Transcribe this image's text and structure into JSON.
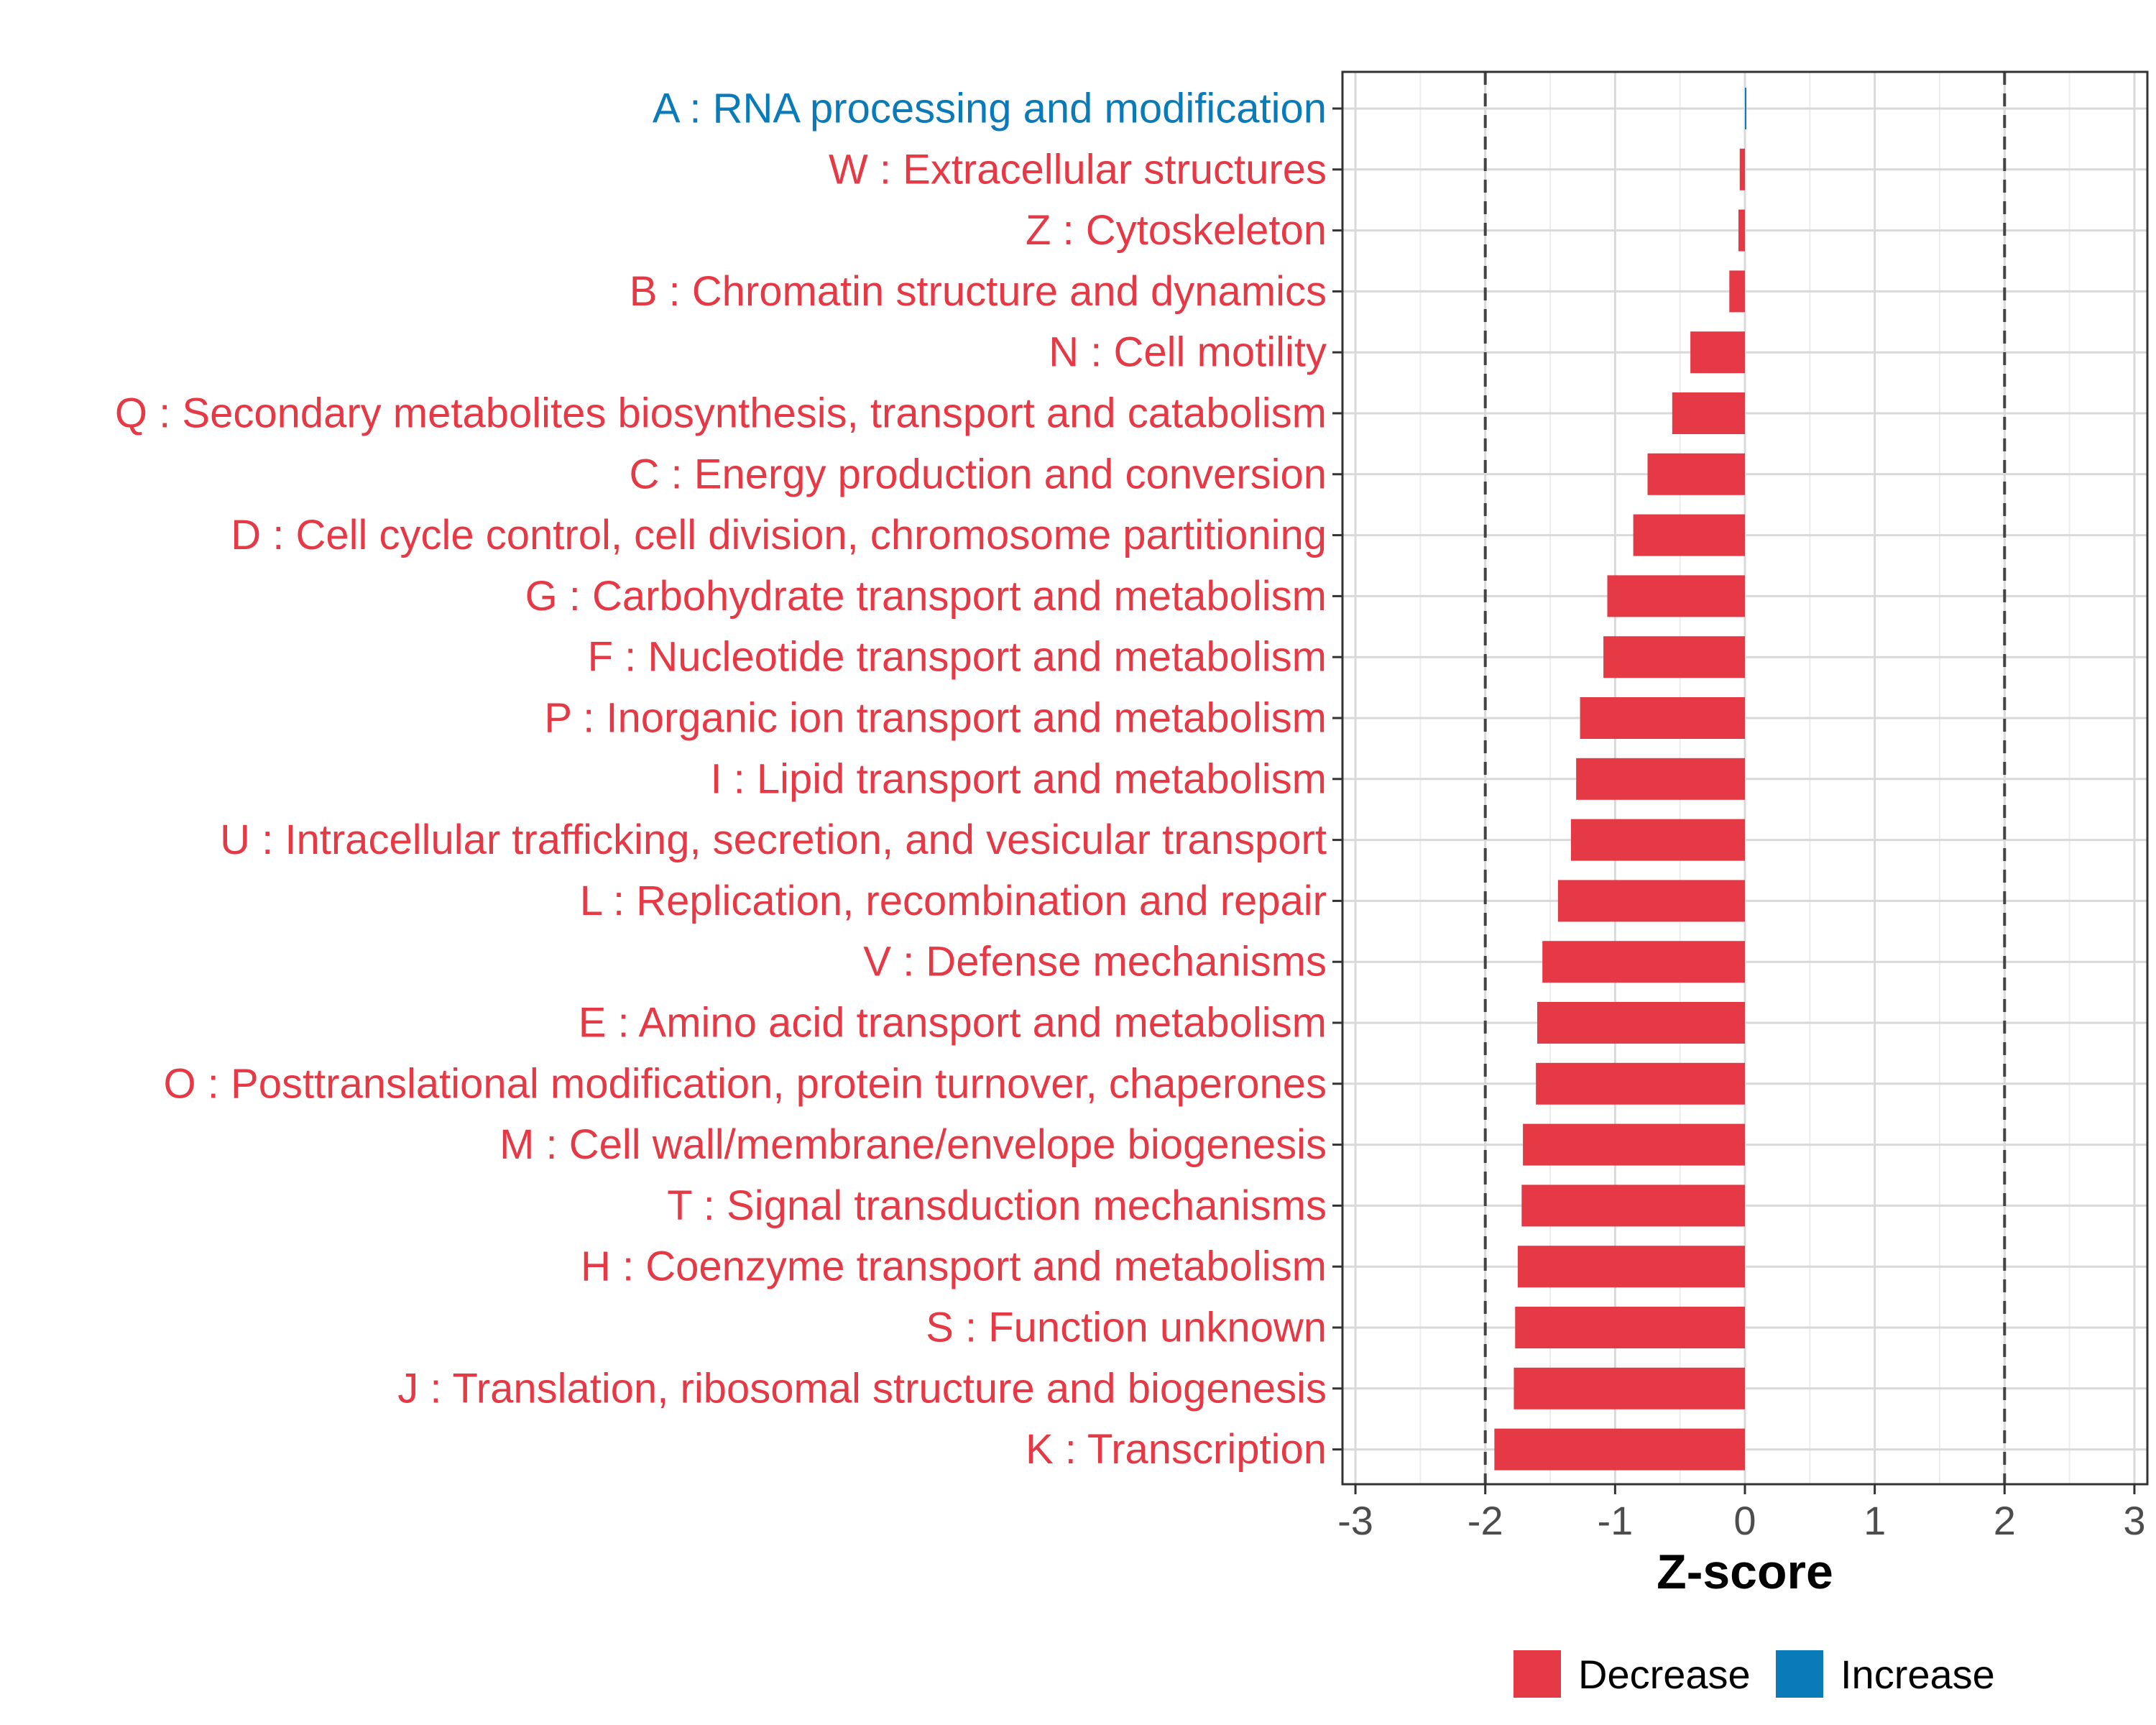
{
  "chart_data": {
    "type": "bar",
    "orientation": "horizontal",
    "xlabel": "Z-score",
    "ylabel": "",
    "xlim": [
      -3.1,
      3.1
    ],
    "xticks": [
      -3,
      -2,
      -1,
      0,
      1,
      2,
      3
    ],
    "threshold_lines": [
      -2,
      2
    ],
    "grid": true,
    "legend_position": "bottom",
    "colors": {
      "Decrease": "#e63946",
      "Increase": "#0a7bb8"
    },
    "legend": [
      "Decrease",
      "Increase"
    ],
    "categories": [
      "A : RNA processing and modification",
      "W : Extracellular structures",
      "Z : Cytoskeleton",
      "B : Chromatin structure and dynamics",
      "N : Cell motility",
      "Q : Secondary metabolites biosynthesis, transport and catabolism",
      "C : Energy production and conversion",
      "D : Cell cycle control, cell division, chromosome partitioning",
      "G : Carbohydrate transport and metabolism",
      "F : Nucleotide transport and metabolism",
      "P : Inorganic ion transport and metabolism",
      "I : Lipid transport and metabolism",
      "U : Intracellular trafficking, secretion, and vesicular transport",
      "L : Replication, recombination and repair",
      "V : Defense mechanisms",
      "E : Amino acid transport and metabolism",
      "O : Posttranslational modification, protein turnover, chaperones",
      "M : Cell wall/membrane/envelope biogenesis",
      "T : Signal transduction mechanisms",
      "H : Coenzyme transport and metabolism",
      "S : Function unknown",
      "J : Translation, ribosomal structure and biogenesis",
      "K : Transcription"
    ],
    "values": [
      0.01,
      -0.04,
      -0.05,
      -0.12,
      -0.42,
      -0.56,
      -0.75,
      -0.86,
      -1.06,
      -1.09,
      -1.27,
      -1.3,
      -1.34,
      -1.44,
      -1.56,
      -1.6,
      -1.61,
      -1.71,
      -1.72,
      -1.75,
      -1.77,
      -1.78,
      -1.93
    ],
    "direction": [
      "Increase",
      "Decrease",
      "Decrease",
      "Decrease",
      "Decrease",
      "Decrease",
      "Decrease",
      "Decrease",
      "Decrease",
      "Decrease",
      "Decrease",
      "Decrease",
      "Decrease",
      "Decrease",
      "Decrease",
      "Decrease",
      "Decrease",
      "Decrease",
      "Decrease",
      "Decrease",
      "Decrease",
      "Decrease",
      "Decrease"
    ]
  }
}
